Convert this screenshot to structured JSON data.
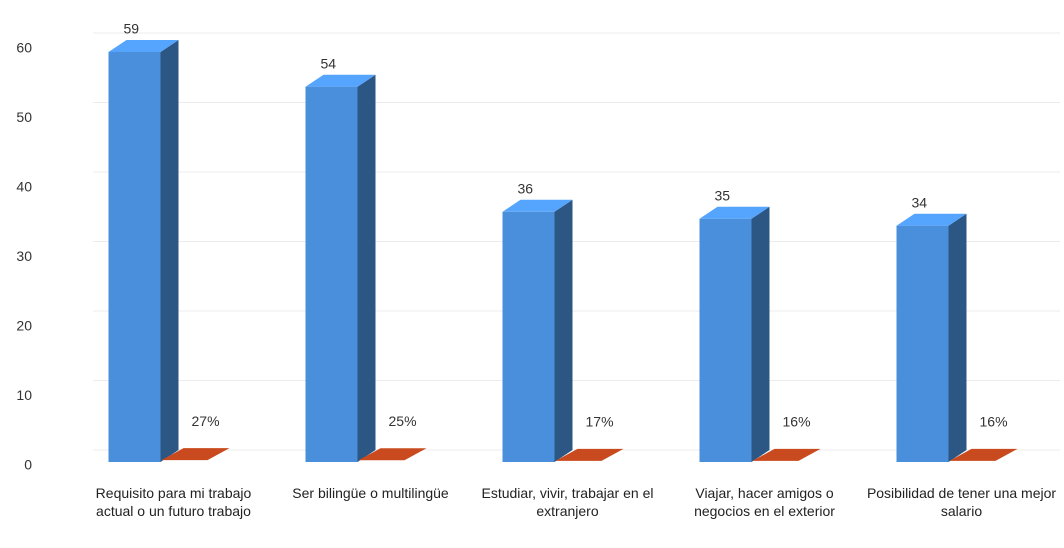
{
  "chart_data": {
    "type": "bar3d",
    "categories": [
      "Requisito para mi trabajo actual o un futuro trabajo",
      "Ser bilingüe o multilingüe",
      "Estudiar, vivir, trabajar en el extranjero",
      "Viajar, hacer amigos o negocios en el exterior",
      "Posibilidad de tener una mejor salario"
    ],
    "series": [
      {
        "color": "#4a8fdc",
        "values": [
          59,
          54,
          36,
          35,
          34
        ]
      },
      {
        "color": "#c84a1e",
        "values": [
          0.27,
          0.25,
          0.17,
          0.16,
          0.16
        ],
        "value_labels": [
          "27%",
          "25%",
          "17%",
          "16%",
          "16%"
        ]
      }
    ],
    "ylim": [
      0,
      60
    ],
    "yticks": [
      0,
      10,
      20,
      30,
      40,
      50,
      60
    ],
    "grid": true
  }
}
